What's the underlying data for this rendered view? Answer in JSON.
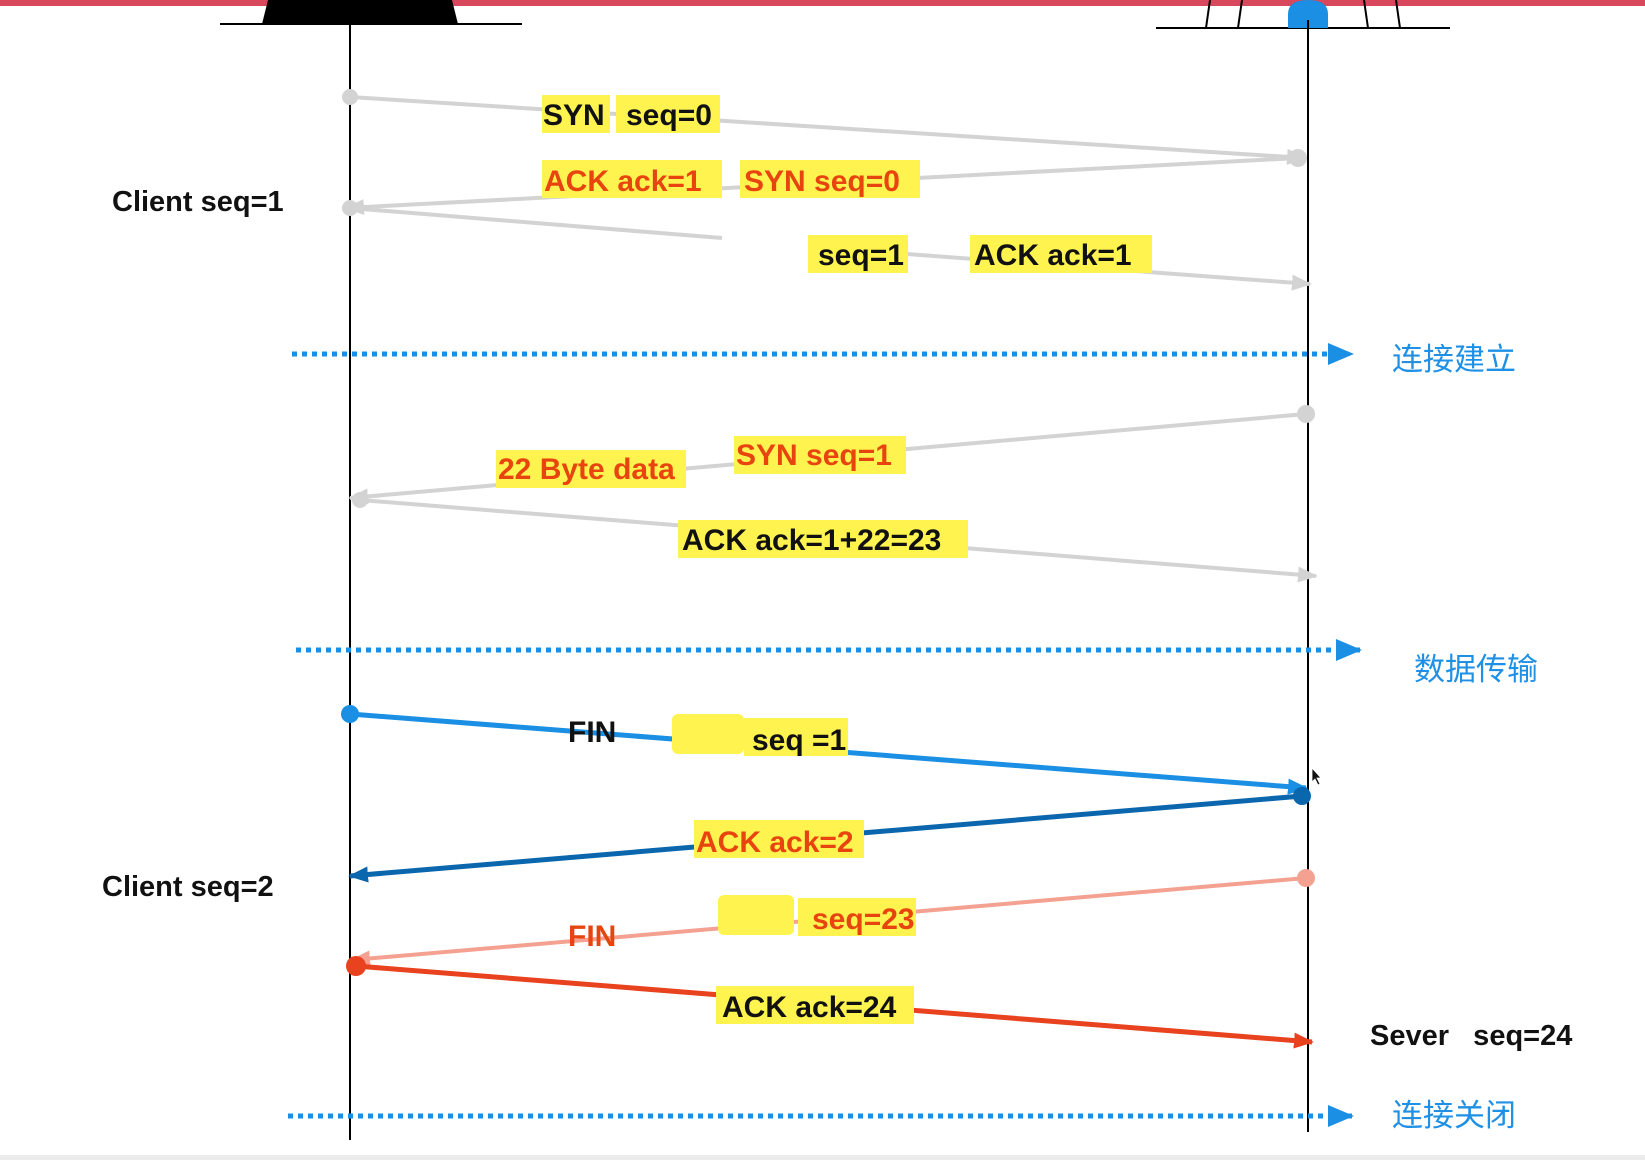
{
  "colors": {
    "grey": "#d3d3d3",
    "blue": "#1a8fe3",
    "dark_blue": "#0a66ad",
    "salmon": "#f4a192",
    "red": "#e8421e",
    "highlight": "#fff44f",
    "orange_text": "#e8440f",
    "phase_blue": "#1e90e6"
  },
  "hosts": {
    "client_icon": "monitor-icon",
    "server_icon": "server-icon"
  },
  "side_labels": {
    "client_seq1": "Client seq=1",
    "client_seq2": "Client seq=2",
    "server_seq24": "Sever   seq=24"
  },
  "phases": {
    "established": "连接建立",
    "transfer": "数据传输",
    "closed": "连接关闭"
  },
  "messages": {
    "m1": {
      "flag": "SYN",
      "value": "seq=0"
    },
    "m2": {
      "flag": "ACK  ack=1",
      "value": "SYN  seq=0"
    },
    "m3": {
      "flag": "seq=1",
      "value": "ACK  ack=1"
    },
    "m4": {
      "flag": "22 Byte data",
      "value": "SYN  seq=1"
    },
    "m5": {
      "flag": "ACK  ack=1+22=23"
    },
    "m6": {
      "flag": "FIN",
      "value": "seq =1"
    },
    "m7": {
      "flag": "ACK ack=2"
    },
    "m8": {
      "flag": "FIN",
      "value": "seq=23"
    },
    "m9": {
      "flag": "ACK  ack=24"
    }
  }
}
